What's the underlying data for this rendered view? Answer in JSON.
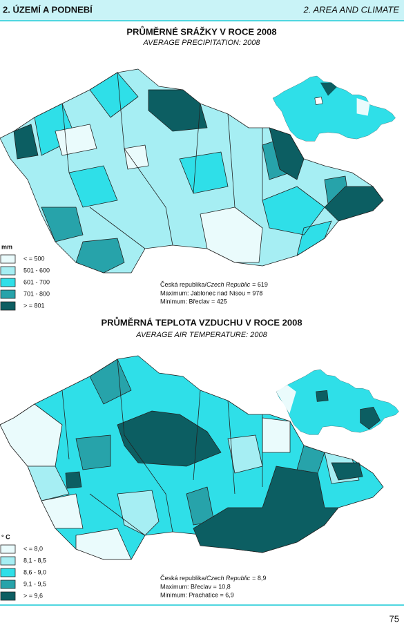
{
  "header": {
    "left": "2. ÚZEMÍ A PODNEBÍ",
    "right": "2. AREA AND CLIMATE"
  },
  "maps": [
    {
      "title": "PRŮMĚRNÉ SRÁŽKY V ROCE 2008",
      "subtitle": "AVERAGE PRECIPITATION: 2008",
      "legend": {
        "unit": "mm",
        "items": [
          {
            "label": "< = 500",
            "color": "#eafbfc"
          },
          {
            "label": "501 - 600",
            "color": "#a6eef3"
          },
          {
            "label": "601 - 700",
            "color": "#2fdfe8"
          },
          {
            "label": "701 - 800",
            "color": "#27a3aa"
          },
          {
            "label": "> = 801",
            "color": "#0c5e62"
          }
        ]
      },
      "stats": {
        "country_cz": "Česká republika/",
        "country_en": "Czech Republic",
        "country_value": "= 619",
        "max": "Maximum: Jablonec nad Nisou = 978",
        "min": "Minimum: Břeclav = 425"
      }
    },
    {
      "title": "PRŮMĚRNÁ TEPLOTA VZDUCHU V ROCE 2008",
      "subtitle": "AVERAGE AIR TEMPERATURE: 2008",
      "legend": {
        "unit": "° C",
        "items": [
          {
            "label": "< = 8,0",
            "color": "#eafbfc"
          },
          {
            "label": "8,1 - 8,5",
            "color": "#a6eef3"
          },
          {
            "label": "8,6 - 9,0",
            "color": "#2fdfe8"
          },
          {
            "label": "9,1 - 9,5",
            "color": "#27a3aa"
          },
          {
            "label": "> = 9,6",
            "color": "#0c5e62"
          }
        ]
      },
      "stats": {
        "country_cz": "Česká republika/",
        "country_en": "Czech Republic",
        "country_value": "= 8,9",
        "max": "Maximum: Břeclav = 10,8",
        "min": "Minimum: Prachatice = 6,9"
      }
    }
  ],
  "page_number": "75"
}
